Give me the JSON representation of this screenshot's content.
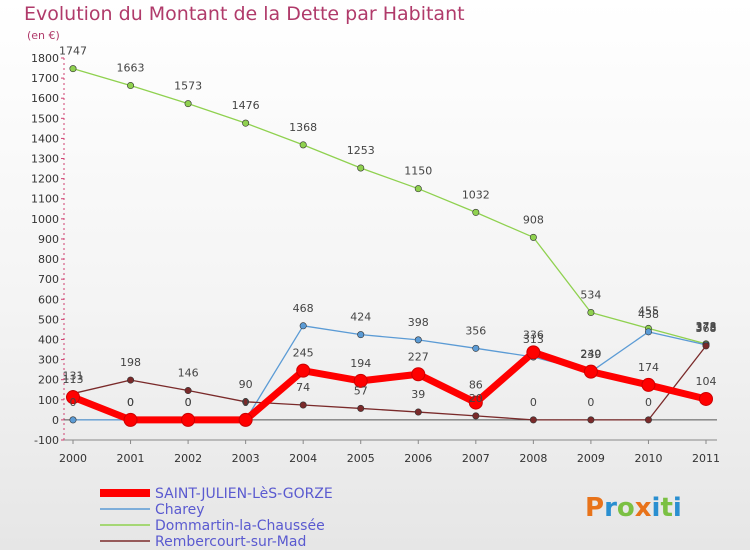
{
  "chart_data": {
    "type": "line",
    "title": "Evolution du Montant de la Dette par Habitant",
    "unit_label": "(en €)",
    "x": [
      "2000",
      "2001",
      "2002",
      "2003",
      "2004",
      "2005",
      "2006",
      "2007",
      "2008",
      "2009",
      "2010",
      "2011"
    ],
    "yticks": [
      "-100",
      "0",
      "100",
      "200",
      "300",
      "400",
      "500",
      "600",
      "700",
      "800",
      "900",
      "1000",
      "1100",
      "1200",
      "1300",
      "1400",
      "1500",
      "1600",
      "1700",
      "1800"
    ],
    "ylim": [
      -100,
      1800
    ],
    "grid": false,
    "legend_position": "bottom-left",
    "series": [
      {
        "name": "SAINT-JULIEN-LèS-GORZE",
        "color": "#ff0000",
        "values": [
          113,
          0,
          0,
          0,
          245,
          194,
          227,
          86,
          336,
          240,
          174,
          104
        ],
        "labels": [
          "113",
          "0",
          "0",
          "0",
          "245",
          "194",
          "227",
          "86",
          "336",
          "240",
          "174",
          "104"
        ]
      },
      {
        "name": "Charey",
        "color": "#5b9bd5",
        "values": [
          0,
          0,
          0,
          0,
          468,
          424,
          398,
          356,
          313,
          239,
          438,
          373
        ],
        "labels": [
          "0",
          "0",
          "0",
          "0",
          "468",
          "424",
          "398",
          "356",
          "313",
          "239",
          "438",
          "373"
        ]
      },
      {
        "name": "Dommartin-la-Chaussée",
        "color": "#8fd14f",
        "values": [
          1747,
          1663,
          1573,
          1476,
          1368,
          1253,
          1150,
          1032,
          908,
          534,
          455,
          378
        ],
        "labels": [
          "1747",
          "1663",
          "1573",
          "1476",
          "1368",
          "1253",
          "1150",
          "1032",
          "908",
          "534",
          "455",
          "378"
        ]
      },
      {
        "name": "Rembercourt-sur-Mad",
        "color": "#7a2a2a",
        "values": [
          131,
          198,
          146,
          90,
          74,
          57,
          39,
          20,
          0,
          0,
          0,
          368
        ],
        "labels": [
          "131",
          "198",
          "146",
          "90",
          "74",
          "57",
          "39",
          "20",
          "0",
          "0",
          "0",
          "368"
        ]
      }
    ]
  },
  "logo": {
    "text": "Proxiti",
    "letters": [
      "P",
      "r",
      "o",
      "x",
      "i",
      "t",
      "i"
    ],
    "colors": [
      "#e8731a",
      "#2a8fd0",
      "#7bc043",
      "#e8731a",
      "#2a8fd0",
      "#7bc043",
      "#2a8fd0"
    ]
  }
}
